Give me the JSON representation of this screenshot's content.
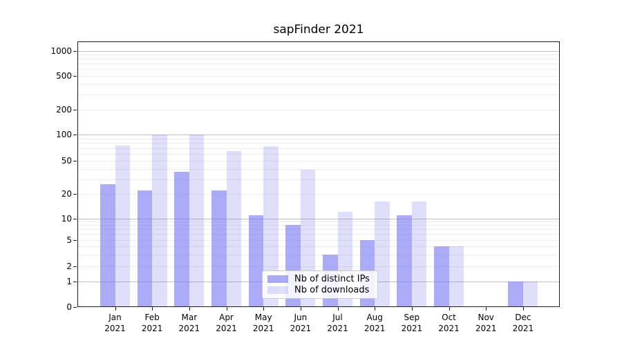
{
  "chart_data": {
    "type": "bar",
    "title": "sapFinder 2021",
    "categories": [
      "Jan 2021",
      "Feb 2021",
      "Mar 2021",
      "Apr 2021",
      "May 2021",
      "Jun 2021",
      "Jul 2021",
      "Aug 2021",
      "Sep 2021",
      "Oct 2021",
      "Nov 2021",
      "Dec 2021"
    ],
    "series": [
      {
        "name": "Nb of distinct IPs",
        "color": "rgba(122,122,240,0.63)",
        "values": [
          26,
          22,
          37,
          22,
          11,
          8,
          3,
          5,
          11,
          4,
          0,
          1
        ]
      },
      {
        "name": "Nb of downloads",
        "color": "rgba(122,122,240,0.24)",
        "values": [
          75,
          100,
          100,
          65,
          74,
          39,
          12,
          16,
          16,
          4,
          0,
          1
        ]
      }
    ],
    "xlabel": "",
    "ylabel": "",
    "y_axis": {
      "scale": "symlog",
      "tick_labels": [
        0,
        1,
        2,
        5,
        10,
        20,
        50,
        100,
        200,
        500,
        1000
      ],
      "major_gridlines": [
        1,
        10,
        100,
        1000
      ],
      "minor_gridlines": [
        2,
        3,
        4,
        5,
        6,
        7,
        8,
        9,
        20,
        30,
        40,
        50,
        60,
        70,
        80,
        90,
        200,
        300,
        400,
        500,
        600,
        700,
        800,
        900
      ],
      "ylim": [
        0,
        1300
      ]
    },
    "grid": true,
    "legend_position": "inside-lower-center"
  },
  "colors": {
    "background": "#ffffff",
    "spine": "#1a1a1a",
    "major_grid": "#bdbdbd",
    "minor_grid": "#ebebeb",
    "text": "#000000"
  }
}
